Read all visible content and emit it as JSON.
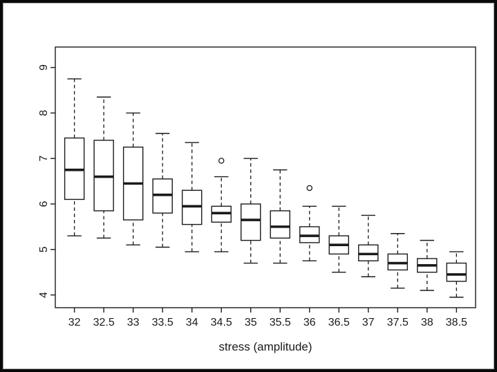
{
  "chart_data": {
    "type": "boxplot",
    "title": "",
    "xlabel": "stress (amplitude)",
    "ylabel": "",
    "categories": [
      "32",
      "32.5",
      "33",
      "33.5",
      "34",
      "34.5",
      "35",
      "35.5",
      "36",
      "36.5",
      "37",
      "37.5",
      "38",
      "38.5"
    ],
    "yticks": [
      4,
      5,
      6,
      7,
      8,
      9
    ],
    "ylim": [
      3.72,
      9.45
    ],
    "grid": false,
    "legend": "none",
    "boxes": [
      {
        "category": "32",
        "whisker_low": 5.3,
        "q1": 6.1,
        "median": 6.75,
        "q3": 7.45,
        "whisker_high": 8.75,
        "outliers": []
      },
      {
        "category": "32.5",
        "whisker_low": 5.25,
        "q1": 5.85,
        "median": 6.6,
        "q3": 7.4,
        "whisker_high": 8.35,
        "outliers": []
      },
      {
        "category": "33",
        "whisker_low": 5.1,
        "q1": 5.65,
        "median": 6.45,
        "q3": 7.25,
        "whisker_high": 8.0,
        "outliers": []
      },
      {
        "category": "33.5",
        "whisker_low": 5.05,
        "q1": 5.8,
        "median": 6.2,
        "q3": 6.55,
        "whisker_high": 7.55,
        "outliers": []
      },
      {
        "category": "34",
        "whisker_low": 4.95,
        "q1": 5.55,
        "median": 5.95,
        "q3": 6.3,
        "whisker_high": 7.35,
        "outliers": []
      },
      {
        "category": "34.5",
        "whisker_low": 4.95,
        "q1": 5.6,
        "median": 5.8,
        "q3": 5.95,
        "whisker_high": 6.6,
        "outliers": [
          6.95
        ]
      },
      {
        "category": "35",
        "whisker_low": 4.7,
        "q1": 5.2,
        "median": 5.65,
        "q3": 6.0,
        "whisker_high": 7.0,
        "outliers": []
      },
      {
        "category": "35.5",
        "whisker_low": 4.7,
        "q1": 5.25,
        "median": 5.5,
        "q3": 5.85,
        "whisker_high": 6.75,
        "outliers": []
      },
      {
        "category": "36",
        "whisker_low": 4.75,
        "q1": 5.15,
        "median": 5.3,
        "q3": 5.5,
        "whisker_high": 5.95,
        "outliers": [
          6.35
        ]
      },
      {
        "category": "36.5",
        "whisker_low": 4.5,
        "q1": 4.9,
        "median": 5.1,
        "q3": 5.3,
        "whisker_high": 5.95,
        "outliers": []
      },
      {
        "category": "37",
        "whisker_low": 4.4,
        "q1": 4.75,
        "median": 4.9,
        "q3": 5.1,
        "whisker_high": 5.75,
        "outliers": []
      },
      {
        "category": "37.5",
        "whisker_low": 4.15,
        "q1": 4.55,
        "median": 4.7,
        "q3": 4.9,
        "whisker_high": 5.35,
        "outliers": []
      },
      {
        "category": "38",
        "whisker_low": 4.1,
        "q1": 4.5,
        "median": 4.65,
        "q3": 4.8,
        "whisker_high": 5.2,
        "outliers": []
      },
      {
        "category": "38.5",
        "whisker_low": 3.95,
        "q1": 4.3,
        "median": 4.45,
        "q3": 4.7,
        "whisker_high": 4.95,
        "outliers": []
      }
    ],
    "colors": {
      "line": "#1a1a1a",
      "box_fill": "#ffffff",
      "text": "#1a1a1a",
      "background": "#ffffff"
    }
  }
}
